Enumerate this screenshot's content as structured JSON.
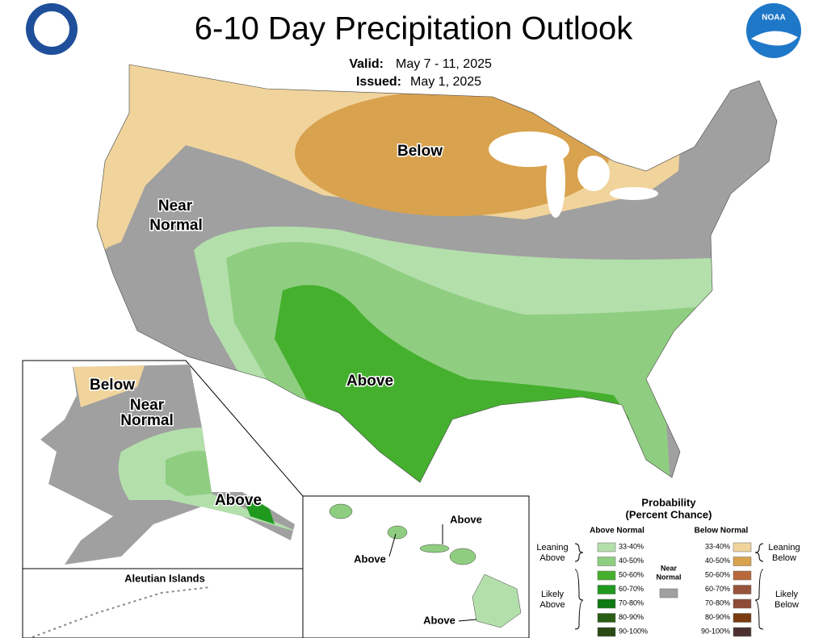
{
  "header": {
    "title": "6-10 Day Precipitation Outlook",
    "valid_label": "Valid:",
    "valid": "May 7 - 11, 2025",
    "issued_label": "Issued:",
    "issued": "May 1, 2025",
    "logo": "NOAA"
  },
  "map": {
    "conus_labels": {
      "below": "Below",
      "near": [
        "Near",
        "Normal"
      ],
      "above": "Above"
    },
    "alaska_labels": {
      "below": "Below",
      "near": [
        "Near",
        "Normal"
      ],
      "above": "Above"
    },
    "aleutian_title": "Aleutian Islands",
    "hawaii_labels": [
      "Above",
      "Above",
      "Above"
    ]
  },
  "legend": {
    "title": [
      "Probability",
      "(Percent Chance)"
    ],
    "above_header": "Above Normal",
    "below_header": "Below Normal",
    "leaning_above": [
      "Leaning",
      "Above"
    ],
    "likely_above": [
      "Likely",
      "Above"
    ],
    "leaning_below": [
      "Leaning",
      "Below"
    ],
    "likely_below": [
      "Likely",
      "Below"
    ],
    "near_normal": [
      "Near",
      "Normal"
    ],
    "near_color": "#a0a0a0",
    "above": [
      {
        "label": "33-40%",
        "color": "#b3dfab"
      },
      {
        "label": "40-50%",
        "color": "#8fce80"
      },
      {
        "label": "50-60%",
        "color": "#45b02e"
      },
      {
        "label": "60-70%",
        "color": "#1f9a1f"
      },
      {
        "label": "70-80%",
        "color": "#0e7a12"
      },
      {
        "label": "80-90%",
        "color": "#285d14"
      },
      {
        "label": "90-100%",
        "color": "#2b4a16"
      }
    ],
    "below": [
      {
        "label": "33-40%",
        "color": "#f0d49c"
      },
      {
        "label": "40-50%",
        "color": "#d9a24e"
      },
      {
        "label": "50-60%",
        "color": "#b8683a"
      },
      {
        "label": "60-70%",
        "color": "#98543a"
      },
      {
        "label": "70-80%",
        "color": "#8f4a36"
      },
      {
        "label": "80-90%",
        "color": "#7a3b0e"
      },
      {
        "label": "90-100%",
        "color": "#4c3030"
      }
    ]
  }
}
